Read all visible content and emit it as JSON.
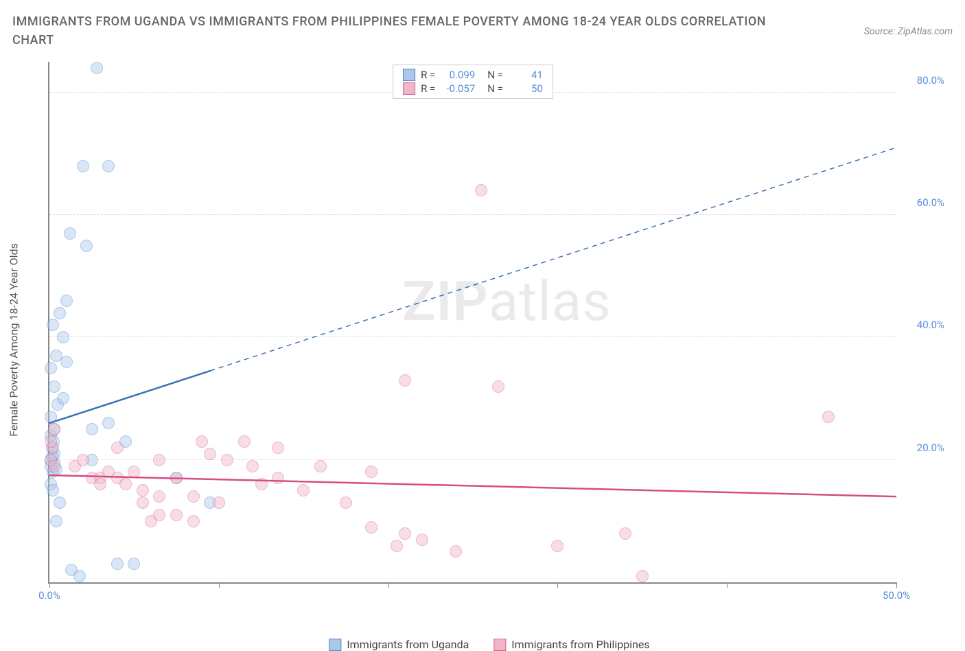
{
  "title": "IMMIGRANTS FROM UGANDA VS IMMIGRANTS FROM PHILIPPINES FEMALE POVERTY AMONG 18-24 YEAR OLDS CORRELATION CHART",
  "source": "Source: ZipAtlas.com",
  "ylabel": "Female Poverty Among 18-24 Year Olds",
  "watermark_a": "ZIP",
  "watermark_b": "atlas",
  "chart": {
    "type": "scatter",
    "background_color": "#ffffff",
    "grid_color": "#dddddd",
    "axis_color": "#888888",
    "x_min": 0,
    "x_max": 50,
    "y_min": 0,
    "y_max": 85,
    "x_ticks": [
      0,
      10,
      20,
      30,
      40,
      50
    ],
    "x_tick_labels": [
      "0.0%",
      "",
      "",
      "",
      "",
      "50.0%"
    ],
    "y_gridlines": [
      20,
      40,
      60,
      80
    ],
    "y_tick_labels": [
      "20.0%",
      "40.0%",
      "60.0%",
      "80.0%"
    ],
    "marker_radius": 9,
    "marker_opacity": 0.45,
    "series": [
      {
        "name": "Immigrants from Uganda",
        "color_fill": "#a9c8ec",
        "color_stroke": "#4f86c6",
        "r_label": "R =",
        "r_value": "0.099",
        "n_label": "N =",
        "n_value": "41",
        "trend": {
          "x1": 0,
          "y1": 26,
          "x2": 50,
          "y2": 71,
          "solid_until_x": 9.5,
          "stroke": "#3e6fb5",
          "width": 2.5
        },
        "points": [
          [
            0.1,
            20
          ],
          [
            0.2,
            18
          ],
          [
            0.3,
            21
          ],
          [
            0.1,
            24
          ],
          [
            0.3,
            25
          ],
          [
            0.1,
            16
          ],
          [
            0.2,
            15
          ],
          [
            0.5,
            29
          ],
          [
            0.8,
            30
          ],
          [
            0.3,
            32
          ],
          [
            0.1,
            35
          ],
          [
            1.0,
            36
          ],
          [
            0.4,
            37
          ],
          [
            0.8,
            40
          ],
          [
            0.2,
            42
          ],
          [
            0.6,
            44
          ],
          [
            1.0,
            46
          ],
          [
            1.2,
            57
          ],
          [
            2.2,
            55
          ],
          [
            2.0,
            68
          ],
          [
            3.5,
            68
          ],
          [
            2.8,
            84
          ],
          [
            0.4,
            10
          ],
          [
            1.3,
            2
          ],
          [
            1.8,
            1
          ],
          [
            0.6,
            13
          ],
          [
            4.0,
            3
          ],
          [
            5.0,
            3
          ],
          [
            2.5,
            20
          ],
          [
            2.5,
            25
          ],
          [
            3.5,
            26
          ],
          [
            4.5,
            23
          ],
          [
            7.5,
            17
          ],
          [
            9.5,
            13
          ],
          [
            0.1,
            19
          ],
          [
            0.15,
            22
          ],
          [
            0.25,
            23
          ],
          [
            0.1,
            27
          ],
          [
            0.3,
            19.5
          ],
          [
            0.15,
            20.5
          ],
          [
            0.4,
            18.5
          ]
        ]
      },
      {
        "name": "Immigrants from Philippines",
        "color_fill": "#f0b6c8",
        "color_stroke": "#d95f8d",
        "r_label": "R =",
        "r_value": "-0.057",
        "n_label": "N =",
        "n_value": "50",
        "trend": {
          "x1": 0,
          "y1": 17.5,
          "x2": 50,
          "y2": 14,
          "solid_until_x": 50,
          "stroke": "#d64d82",
          "width": 2.5
        },
        "points": [
          [
            0.2,
            22
          ],
          [
            0.1,
            23
          ],
          [
            0.3,
            25
          ],
          [
            0.1,
            20
          ],
          [
            1.5,
            19
          ],
          [
            2.0,
            20
          ],
          [
            2.5,
            17
          ],
          [
            3.0,
            17
          ],
          [
            3.5,
            18
          ],
          [
            3.0,
            16
          ],
          [
            4.0,
            17
          ],
          [
            4.5,
            16
          ],
          [
            4.0,
            22
          ],
          [
            5.0,
            18
          ],
          [
            5.5,
            13
          ],
          [
            5.5,
            15
          ],
          [
            6.5,
            11
          ],
          [
            6.5,
            14
          ],
          [
            7.5,
            11
          ],
          [
            6.0,
            10
          ],
          [
            6.5,
            20
          ],
          [
            7.5,
            17
          ],
          [
            8.5,
            14
          ],
          [
            8.5,
            10
          ],
          [
            9.5,
            21
          ],
          [
            9.0,
            23
          ],
          [
            10,
            13
          ],
          [
            10.5,
            20
          ],
          [
            11.5,
            23
          ],
          [
            12.5,
            16
          ],
          [
            12,
            19
          ],
          [
            13.5,
            22
          ],
          [
            13.5,
            17
          ],
          [
            15,
            15
          ],
          [
            16,
            19
          ],
          [
            17.5,
            13
          ],
          [
            19,
            18
          ],
          [
            19,
            9
          ],
          [
            20.5,
            6
          ],
          [
            21,
            8
          ],
          [
            21,
            33
          ],
          [
            22,
            7
          ],
          [
            24,
            5
          ],
          [
            25.5,
            64
          ],
          [
            26.5,
            32
          ],
          [
            30,
            6
          ],
          [
            34,
            8
          ],
          [
            35,
            1
          ],
          [
            46,
            27
          ],
          [
            0.3,
            19
          ]
        ]
      }
    ]
  },
  "bottom_legend": [
    {
      "label": "Immigrants from Uganda",
      "fill": "#a9c8ec",
      "stroke": "#4f86c6"
    },
    {
      "label": "Immigrants from Philippines",
      "fill": "#f0b6c8",
      "stroke": "#d95f8d"
    }
  ]
}
